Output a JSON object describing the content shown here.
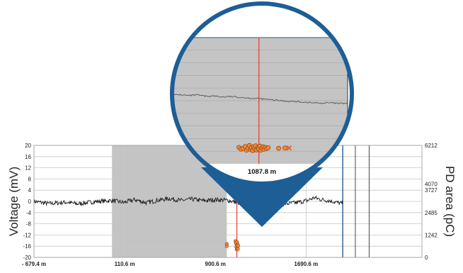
{
  "chart_data": {
    "type": "line",
    "title": "",
    "xlabel": "",
    "ylabel": "Voltage (mV)",
    "y2label": "PD area (pC)",
    "x_tick_labels": [
      "- 679.4 m",
      "110.6 m",
      "900.6 m",
      "1690.6 m"
    ],
    "x_ticks": [
      -679.4,
      110.6,
      900.6,
      1690.6
    ],
    "xlim": [
      -679.4,
      2700
    ],
    "ylim": [
      -20,
      20
    ],
    "y_ticks": [
      20,
      16,
      12,
      8,
      4,
      0,
      -4,
      -8,
      -12,
      -16,
      -20
    ],
    "y_tick_labels": [
      "20",
      "16",
      "12",
      "8",
      "4",
      "0",
      "-4",
      "-8",
      "-12",
      "-16",
      "-20"
    ],
    "y2_ticks": [
      6212,
      4070,
      3727,
      2485,
      1242,
      0
    ],
    "y2_tick_labels": [
      "6212",
      "4070",
      "3727",
      "2485",
      "1242",
      "0"
    ],
    "shaded_region": [
      0,
      1000
    ],
    "cursor_x": 1087.8,
    "cursor_label": "1087.8 m",
    "vertical_lines": [
      2010,
      2120,
      2240
    ],
    "grid": true,
    "series": [
      {
        "values": [
          [
            -679.4,
            0.0
          ],
          [
            -550,
            -0.8
          ],
          [
            -400,
            -0.3
          ],
          [
            -300,
            -0.9
          ],
          [
            -150,
            -0.1
          ],
          [
            0,
            0.3
          ],
          [
            100,
            -0.4
          ],
          [
            200,
            0.6
          ],
          [
            300,
            -0.5
          ],
          [
            400,
            0.4
          ],
          [
            500,
            1.0
          ],
          [
            600,
            0.3
          ],
          [
            700,
            0.8
          ],
          [
            800,
            0.2
          ],
          [
            900,
            0.6
          ],
          [
            1000,
            0.4
          ],
          [
            1050,
            0.0
          ],
          [
            1100,
            -0.6
          ],
          [
            1200,
            -1.2
          ],
          [
            1300,
            -0.8
          ],
          [
            1400,
            -1.6
          ],
          [
            1500,
            -0.9
          ],
          [
            1600,
            -0.5
          ],
          [
            1700,
            0.3
          ],
          [
            1760,
            1.3
          ],
          [
            1820,
            0.7
          ],
          [
            1900,
            0.2
          ],
          [
            1960,
            -0.4
          ],
          [
            2010,
            -0.8
          ]
        ]
      },
      {
        "name": "PD events",
        "type": "scatter",
        "points": [
          [
            1000,
            -15.2
          ],
          [
            1000,
            -16.0
          ],
          [
            1075,
            -14.2
          ],
          [
            1080,
            -15.0
          ],
          [
            1083,
            -16.3
          ],
          [
            1086,
            -17.2
          ],
          [
            1088,
            -15.6
          ],
          [
            1090,
            -14.5
          ],
          [
            1092,
            -16.6
          ],
          [
            1095,
            -15.4
          ],
          [
            1097,
            -17.0
          ],
          [
            1100,
            -15.9
          ]
        ]
      }
    ]
  },
  "zoom_inset": {
    "cursor_label": "1087.8 m",
    "cursor_x": 1087.8,
    "x_range": [
      880,
      1300
    ],
    "trace": [
      [
        880,
        1.8
      ],
      [
        900,
        1.9
      ],
      [
        920,
        1.6
      ],
      [
        940,
        1.8
      ],
      [
        960,
        1.4
      ],
      [
        980,
        1.5
      ],
      [
        1000,
        1.2
      ],
      [
        1020,
        1.3
      ],
      [
        1040,
        1.1
      ],
      [
        1060,
        0.9
      ],
      [
        1080,
        0.7
      ],
      [
        1100,
        0.5
      ],
      [
        1120,
        0.2
      ],
      [
        1140,
        0.0
      ],
      [
        1160,
        -0.2
      ],
      [
        1180,
        -0.3
      ],
      [
        1200,
        -0.5
      ],
      [
        1220,
        -0.7
      ],
      [
        1240,
        -0.8
      ],
      [
        1260,
        -0.7
      ],
      [
        1280,
        -0.9
      ],
      [
        1300,
        -0.8
      ]
    ],
    "pd_cluster": [
      [
        1040,
        -14.8
      ],
      [
        1045,
        -15.4
      ],
      [
        1050,
        -15.1
      ],
      [
        1055,
        -14.5
      ],
      [
        1058,
        -15.7
      ],
      [
        1062,
        -15.0
      ],
      [
        1065,
        -14.2
      ],
      [
        1068,
        -15.5
      ],
      [
        1070,
        -14.9
      ],
      [
        1073,
        -15.8
      ],
      [
        1075,
        -14.6
      ],
      [
        1078,
        -15.2
      ],
      [
        1080,
        -14.3
      ],
      [
        1082,
        -15.6
      ],
      [
        1085,
        -14.9
      ],
      [
        1087,
        -15.3
      ],
      [
        1090,
        -14.4
      ],
      [
        1092,
        -15.7
      ],
      [
        1095,
        -15.0
      ],
      [
        1098,
        -14.6
      ],
      [
        1100,
        -15.4
      ],
      [
        1103,
        -14.8
      ],
      [
        1106,
        -15.2
      ],
      [
        1110,
        -14.9
      ]
    ],
    "pd_outliers": [
      [
        1135,
        -15.1
      ],
      [
        1150,
        -15.0
      ]
    ],
    "x_marker": [
      1160,
      -15.0
    ]
  },
  "colors": {
    "trace": "#1a1a1a",
    "shaded": "#c4c4c4",
    "cursor": "#e53a2a",
    "magnifier": "#1d5e96",
    "marker_fill": "#f08a3c",
    "marker_stroke": "#9a4a16",
    "grid": "#c8c8c8",
    "blue_line": "#2a5a8a"
  }
}
